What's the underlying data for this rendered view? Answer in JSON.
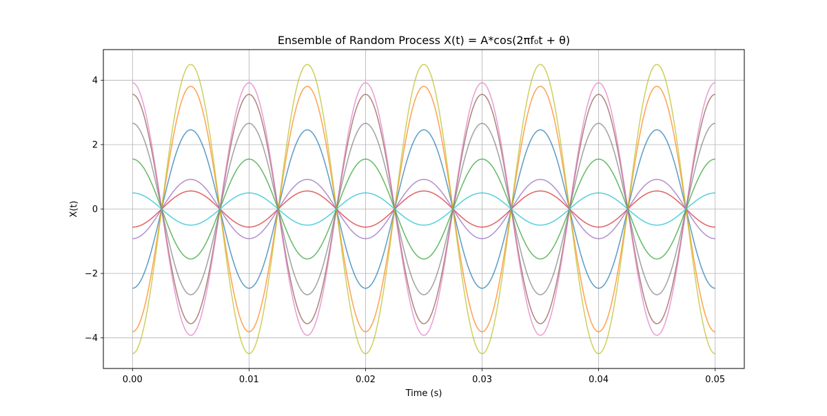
{
  "chart_data": {
    "type": "line",
    "title": "Ensemble of Random Process X(t) = A*cos(2πf₀t + θ)",
    "xlabel": "Time (s)",
    "ylabel": "X(t)",
    "xlim": [
      -0.0025,
      0.0525
    ],
    "ylim": [
      -4.95,
      4.95
    ],
    "x_ticks": [
      0.0,
      0.01,
      0.02,
      0.03,
      0.04,
      0.05
    ],
    "x_tick_labels": [
      "0.00",
      "0.01",
      "0.02",
      "0.03",
      "0.04",
      "0.05"
    ],
    "y_ticks": [
      -4,
      -2,
      0,
      2,
      4
    ],
    "y_tick_labels": [
      "−4",
      "−2",
      "0",
      "2",
      "4"
    ],
    "grid": true,
    "legend": "none",
    "x_range": [
      0,
      0.05
    ],
    "frequency_hz": 100,
    "series": [
      {
        "color": "#1f77b4",
        "amplitude": 2.46,
        "phase": 3.14159
      },
      {
        "color": "#ff7f0e",
        "amplitude": 3.81,
        "phase": 3.14159
      },
      {
        "color": "#2ca02c",
        "amplitude": 1.55,
        "phase": 0
      },
      {
        "color": "#d62728",
        "amplitude": 0.56,
        "phase": 3.14159
      },
      {
        "color": "#9467bd",
        "amplitude": 0.92,
        "phase": 3.14159
      },
      {
        "color": "#8c564b",
        "amplitude": 3.56,
        "phase": 0
      },
      {
        "color": "#e377c2",
        "amplitude": 3.92,
        "phase": 0
      },
      {
        "color": "#7f7f7f",
        "amplitude": 2.66,
        "phase": 0
      },
      {
        "color": "#bcbd22",
        "amplitude": 4.49,
        "phase": 3.14159
      },
      {
        "color": "#17becf",
        "amplitude": 0.5,
        "phase": 0
      }
    ]
  }
}
